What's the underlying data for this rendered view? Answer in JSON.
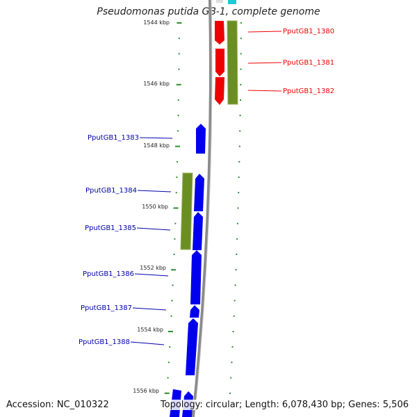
{
  "title": "Pseudomonas putida GB-1, complete genome",
  "footer": {
    "accession": "Accession: NC_010322",
    "summary": "Topology: circular; Length: 6,078,430 bp; Genes: 5,506"
  },
  "colors": {
    "plus_strand_gene": "#ee0000",
    "minus_strand_gene": "#0000ee",
    "green_feature": "#6b8e23",
    "tick": "#2e8b2e",
    "backbone": "#888888"
  },
  "ruler": [
    {
      "label": "1544 kbp"
    },
    {
      "label": "1546 kbp"
    },
    {
      "label": "1548 kbp"
    },
    {
      "label": "1550 kbp"
    },
    {
      "label": "1552 kbp"
    },
    {
      "label": "1554 kbp"
    },
    {
      "label": "1556 kbp"
    }
  ],
  "genes": [
    {
      "name": "PputGB1_1380",
      "strand": "+"
    },
    {
      "name": "PputGB1_1381",
      "strand": "+"
    },
    {
      "name": "PputGB1_1382",
      "strand": "+"
    },
    {
      "name": "PputGB1_1383",
      "strand": "-"
    },
    {
      "name": "PputGB1_1384",
      "strand": "-"
    },
    {
      "name": "PputGB1_1385",
      "strand": "-"
    },
    {
      "name": "PputGB1_1386",
      "strand": "-"
    },
    {
      "name": "PputGB1_1387",
      "strand": "-"
    },
    {
      "name": "PputGB1_1388",
      "strand": "-"
    }
  ]
}
